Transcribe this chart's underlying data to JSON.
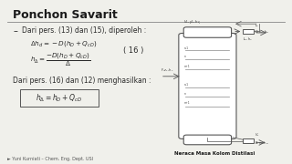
{
  "title": "Ponchon Savarit",
  "bg_color": "#f0f0eb",
  "bullet_text": "Dari pers. (13) dan (15), diperoleh :",
  "eq_line1": "$\\Delta h_d = -D(h_D + Q_{cD})$",
  "eq_line2": "$h_\\Delta = \\dfrac{-D(h_D + Q_{cD})}{\\Delta}$",
  "eq_number": "( 16 )",
  "text2": "Dari pers. (16) dan (12) menghasilkan :",
  "boxed_eq": "$h_\\Delta = h_D + Q_{cD}$",
  "footer": "► Yuni Kurniati – Chem. Eng. Dept. USI",
  "diagram_label": "Neraca Masa Kolom Distilasi"
}
